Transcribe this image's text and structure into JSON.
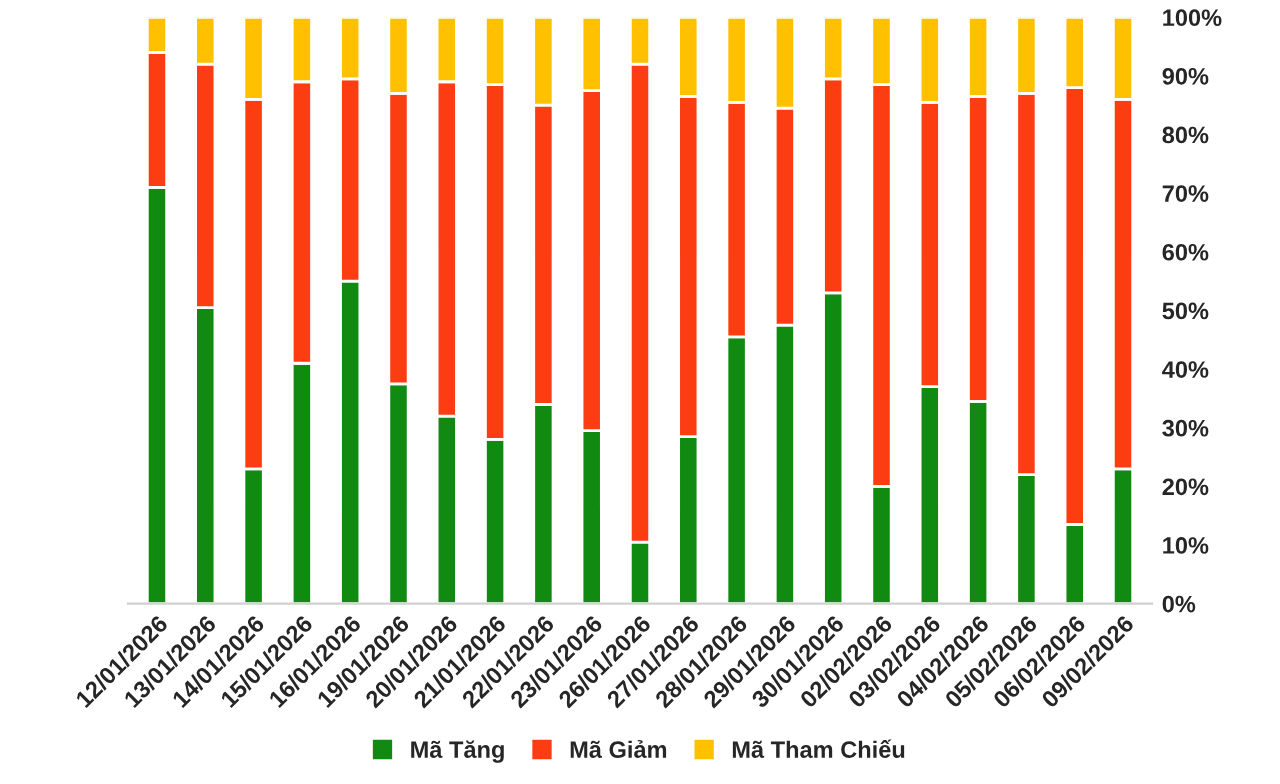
{
  "chart_data": {
    "type": "bar",
    "stacked": true,
    "categories": [
      "12/01/2026",
      "13/01/2026",
      "14/01/2026",
      "15/01/2026",
      "16/01/2026",
      "19/01/2026",
      "20/01/2026",
      "21/01/2026",
      "22/01/2026",
      "23/01/2026",
      "26/01/2026",
      "27/01/2026",
      "28/01/2026",
      "29/01/2026",
      "30/01/2026",
      "02/02/2026",
      "03/02/2026",
      "04/02/2026",
      "05/02/2026",
      "06/02/2026",
      "09/02/2026"
    ],
    "series": [
      {
        "name": "Mã Tăng",
        "color": "#118a11",
        "values": [
          71,
          50.5,
          23,
          41,
          55,
          37.5,
          32,
          28,
          34,
          29.5,
          10.5,
          28.5,
          45.5,
          47.5,
          53,
          20,
          37,
          34.5,
          22,
          13.5,
          23
        ]
      },
      {
        "name": "Mã Giảm",
        "color": "#fc3d12",
        "values": [
          23,
          41.5,
          63,
          48,
          34.5,
          49.5,
          57,
          60.5,
          51,
          58,
          81.5,
          58,
          40,
          37,
          36.5,
          68.5,
          48.5,
          52,
          65,
          74.5,
          63
        ]
      },
      {
        "name": "Mã Tham Chiếu",
        "color": "#ffc000",
        "values": [
          6,
          8,
          14,
          11,
          10.5,
          13,
          11,
          11.5,
          15,
          12.5,
          8,
          13.5,
          14.5,
          15.5,
          10.5,
          11.5,
          14.5,
          13.5,
          13,
          12,
          14
        ]
      }
    ],
    "ylim": [
      0,
      100
    ],
    "yticks": [
      {
        "value": 0,
        "label": "0%"
      },
      {
        "value": 10,
        "label": "10%"
      },
      {
        "value": 20,
        "label": "20%"
      },
      {
        "value": 30,
        "label": "30%"
      },
      {
        "value": 40,
        "label": "40%"
      },
      {
        "value": 50,
        "label": "50%"
      },
      {
        "value": 60,
        "label": "60%"
      },
      {
        "value": 70,
        "label": "70%"
      },
      {
        "value": 80,
        "label": "80%"
      },
      {
        "value": 90,
        "label": "90%"
      },
      {
        "value": 100,
        "label": "100%"
      }
    ],
    "grid": false,
    "legend": "bottom"
  }
}
